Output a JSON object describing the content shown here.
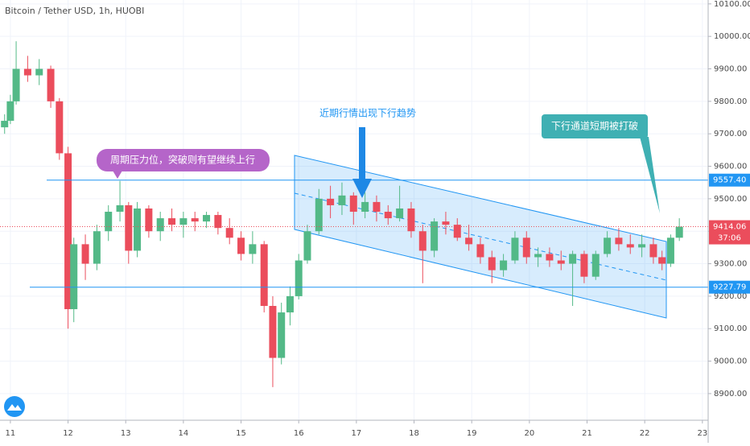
{
  "chart_data": {
    "type": "candlestick",
    "title": "Bitcoin / Tether USD, 1h, HUOBI",
    "x": [
      10.9,
      11.0,
      11.1,
      11.3,
      11.5,
      11.7,
      11.85,
      12.0,
      12.1,
      12.3,
      12.5,
      12.7,
      12.9,
      13.05,
      13.2,
      13.4,
      13.6,
      13.8,
      14.0,
      14.2,
      14.4,
      14.6,
      14.8,
      15.0,
      15.2,
      15.4,
      15.55,
      15.7,
      15.85,
      16.0,
      16.15,
      16.35,
      16.55,
      16.75,
      16.95,
      17.15,
      17.35,
      17.55,
      17.75,
      17.95,
      18.15,
      18.35,
      18.55,
      18.75,
      18.95,
      19.15,
      19.35,
      19.55,
      19.75,
      19.95,
      20.15,
      20.35,
      20.55,
      20.75,
      20.95,
      21.15,
      21.35,
      21.55,
      21.75,
      21.95,
      22.15,
      22.3,
      22.45,
      22.6
    ],
    "open": [
      9720,
      9740,
      9800,
      9900,
      9880,
      9900,
      9800,
      9640,
      9160,
      9360,
      9300,
      9400,
      9460,
      9480,
      9340,
      9470,
      9400,
      9440,
      9420,
      9440,
      9430,
      9450,
      9410,
      9380,
      9330,
      9360,
      9170,
      9010,
      9150,
      9200,
      9310,
      9400,
      9500,
      9480,
      9510,
      9460,
      9490,
      9460,
      9440,
      9470,
      9400,
      9340,
      9430,
      9420,
      9380,
      9360,
      9320,
      9280,
      9310,
      9380,
      9320,
      9330,
      9310,
      9300,
      9330,
      9260,
      9330,
      9380,
      9360,
      9350,
      9360,
      9320,
      9300,
      9380
    ],
    "high": [
      9760,
      9820,
      9985,
      9940,
      9930,
      9910,
      9810,
      9660,
      9380,
      9390,
      9420,
      9480,
      9555,
      9490,
      9490,
      9480,
      9460,
      9470,
      9460,
      9460,
      9460,
      9460,
      9440,
      9400,
      9400,
      9370,
      9200,
      9180,
      9230,
      9330,
      9420,
      9530,
      9540,
      9550,
      9520,
      9520,
      9510,
      9480,
      9540,
      9490,
      9420,
      9440,
      9460,
      9440,
      9420,
      9380,
      9340,
      9330,
      9400,
      9400,
      9350,
      9350,
      9340,
      9340,
      9340,
      9340,
      9400,
      9410,
      9390,
      9390,
      9380,
      9340,
      9390,
      9440
    ],
    "low": [
      9700,
      9730,
      9790,
      9860,
      9850,
      9780,
      9620,
      9100,
      9120,
      9250,
      9280,
      9370,
      9430,
      9300,
      9320,
      9380,
      9370,
      9400,
      9380,
      9400,
      9410,
      9390,
      9360,
      9310,
      9300,
      9150,
      8920,
      8990,
      9110,
      9190,
      9300,
      9390,
      9440,
      9450,
      9420,
      9440,
      9430,
      9420,
      9430,
      9380,
      9240,
      9320,
      9390,
      9370,
      9340,
      9300,
      9240,
      9260,
      9300,
      9300,
      9290,
      9290,
      9280,
      9170,
      9240,
      9250,
      9320,
      9340,
      9330,
      9320,
      9300,
      9280,
      9290,
      9370
    ],
    "close": [
      9740,
      9800,
      9900,
      9880,
      9900,
      9800,
      9640,
      9160,
      9360,
      9300,
      9400,
      9460,
      9480,
      9340,
      9470,
      9400,
      9440,
      9420,
      9440,
      9430,
      9450,
      9410,
      9380,
      9330,
      9360,
      9170,
      9010,
      9150,
      9200,
      9310,
      9400,
      9500,
      9480,
      9510,
      9460,
      9490,
      9460,
      9440,
      9470,
      9400,
      9340,
      9430,
      9420,
      9380,
      9360,
      9320,
      9280,
      9310,
      9380,
      9320,
      9330,
      9310,
      9300,
      9330,
      9260,
      9330,
      9380,
      9360,
      9350,
      9360,
      9320,
      9300,
      9380,
      9414
    ],
    "up_color": "#53b987",
    "down_color": "#eb4d5c",
    "xlim": [
      10.82,
      23.1
    ],
    "xticks": [
      11,
      12,
      13,
      14,
      15,
      16,
      17,
      18,
      19,
      20,
      21,
      22,
      23
    ],
    "ylim": [
      8818,
      10112
    ],
    "yticks": [
      {
        "value": 8900,
        "label": "8900.00"
      },
      {
        "value": 9000,
        "label": "9000.00"
      },
      {
        "value": 9100,
        "label": "9100.00"
      },
      {
        "value": 9200,
        "label": "9200.00"
      },
      {
        "value": 9300,
        "label": "9300.00"
      },
      {
        "value": 9400,
        "label": "9400.00"
      },
      {
        "value": 9500,
        "label": "9500.00"
      },
      {
        "value": 9600,
        "label": "9600.00"
      },
      {
        "value": 9700,
        "label": "9700.00"
      },
      {
        "value": 9800,
        "label": "9800.00"
      },
      {
        "value": 9900,
        "label": "9900.00"
      },
      {
        "value": 10000,
        "label": "10000.00"
      },
      {
        "value": 10100,
        "label": "10100.00"
      }
    ],
    "hlines": [
      {
        "value": 9557.4,
        "label": "9557.40"
      },
      {
        "value": 9227.79,
        "label": "9227.79"
      }
    ],
    "last_price": {
      "value": 9414.06,
      "label": "9414.06"
    },
    "countdown": "37:06",
    "annotations": [
      "周期压力位，突破则有望继续上行",
      "近期行情出现下行趋势",
      "下行通道短期被打破"
    ]
  }
}
